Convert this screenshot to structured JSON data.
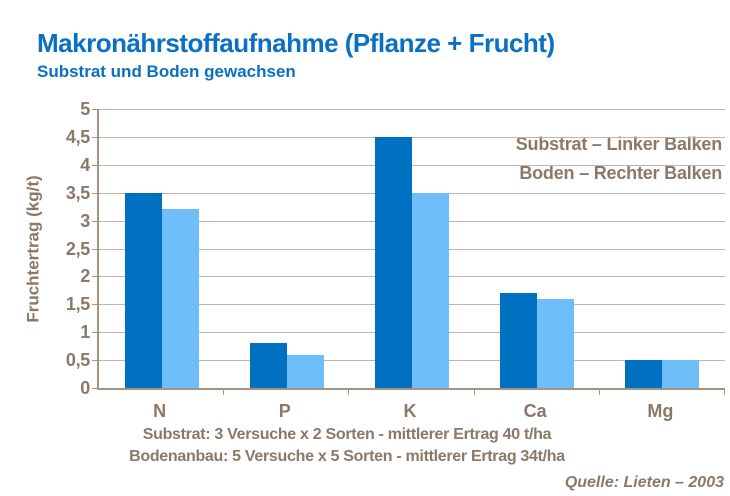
{
  "header": {
    "title": "Makronährstoffaufnahme (Pflanze + Frucht)",
    "subtitle": "Substrat und Boden gewachsen"
  },
  "legend": {
    "line1": "Substrat  – Linker Balken",
    "line2": "Boden – Rechter Balken"
  },
  "footer": {
    "line1": "Substrat: 3 Versuche x 2 Sorten - mittlerer Ertrag 40 t/ha",
    "line2": "Bodenanbau: 5 Versuche x 5 Sorten - mittlerer Ertrag 34t/ha",
    "source": "Quelle:  Lieten – 2003"
  },
  "colors": {
    "title_blue": "#0a70c4",
    "substrat_bar": "#0070c0",
    "boden_bar": "#6dbef9",
    "axis_text_brown": "#8a7968",
    "gridline": "#c0b5ab",
    "axis_line": "#a39382"
  },
  "chart_data": {
    "type": "bar",
    "title": "Makronährstoffaufnahme (Pflanze + Frucht)",
    "subtitle": "Substrat und Boden gewachsen",
    "categories": [
      "N",
      "P",
      "K",
      "Ca",
      "Mg"
    ],
    "series": [
      {
        "name": "Substrat",
        "color": "#0070c0",
        "values": [
          3.5,
          0.8,
          4.5,
          1.7,
          0.5
        ]
      },
      {
        "name": "Boden",
        "color": "#6dbef9",
        "values": [
          3.2,
          0.6,
          3.5,
          1.6,
          0.5
        ]
      }
    ],
    "xlabel": "",
    "ylabel": "Fruchtertrag (kg/t)",
    "ylim": [
      0,
      5
    ],
    "ytick_step": 0.5,
    "ytick_labels": [
      "0",
      "0,5",
      "1",
      "1,5",
      "2",
      "2,5",
      "3",
      "3,5",
      "4",
      "4,5",
      "5"
    ],
    "grid": true,
    "legend_position": "top-right"
  }
}
